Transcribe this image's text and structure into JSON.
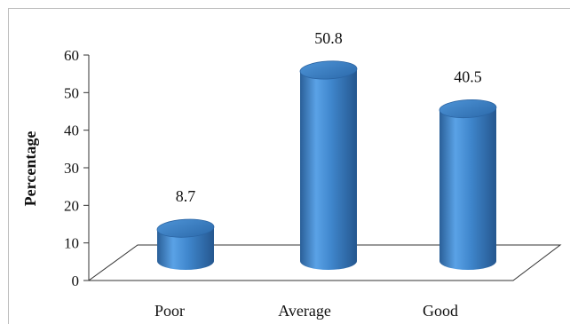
{
  "chart_data": {
    "type": "bar",
    "style": "3d-cylinder",
    "categories": [
      "Poor",
      "Average",
      "Good"
    ],
    "values": [
      8.7,
      50.8,
      40.5
    ],
    "data_labels": [
      "8.7",
      "50.8",
      "40.5"
    ],
    "xlabel": "",
    "ylabel": "Percentage",
    "ylim": [
      0,
      60
    ],
    "yticks": [
      "0",
      "10",
      "20",
      "30",
      "40",
      "50",
      "60"
    ],
    "grid": false,
    "legend": "none",
    "colors": {
      "bar_body": "#3f86cc",
      "bar_top": "#2f73b8",
      "axis_line": "#333333"
    }
  }
}
